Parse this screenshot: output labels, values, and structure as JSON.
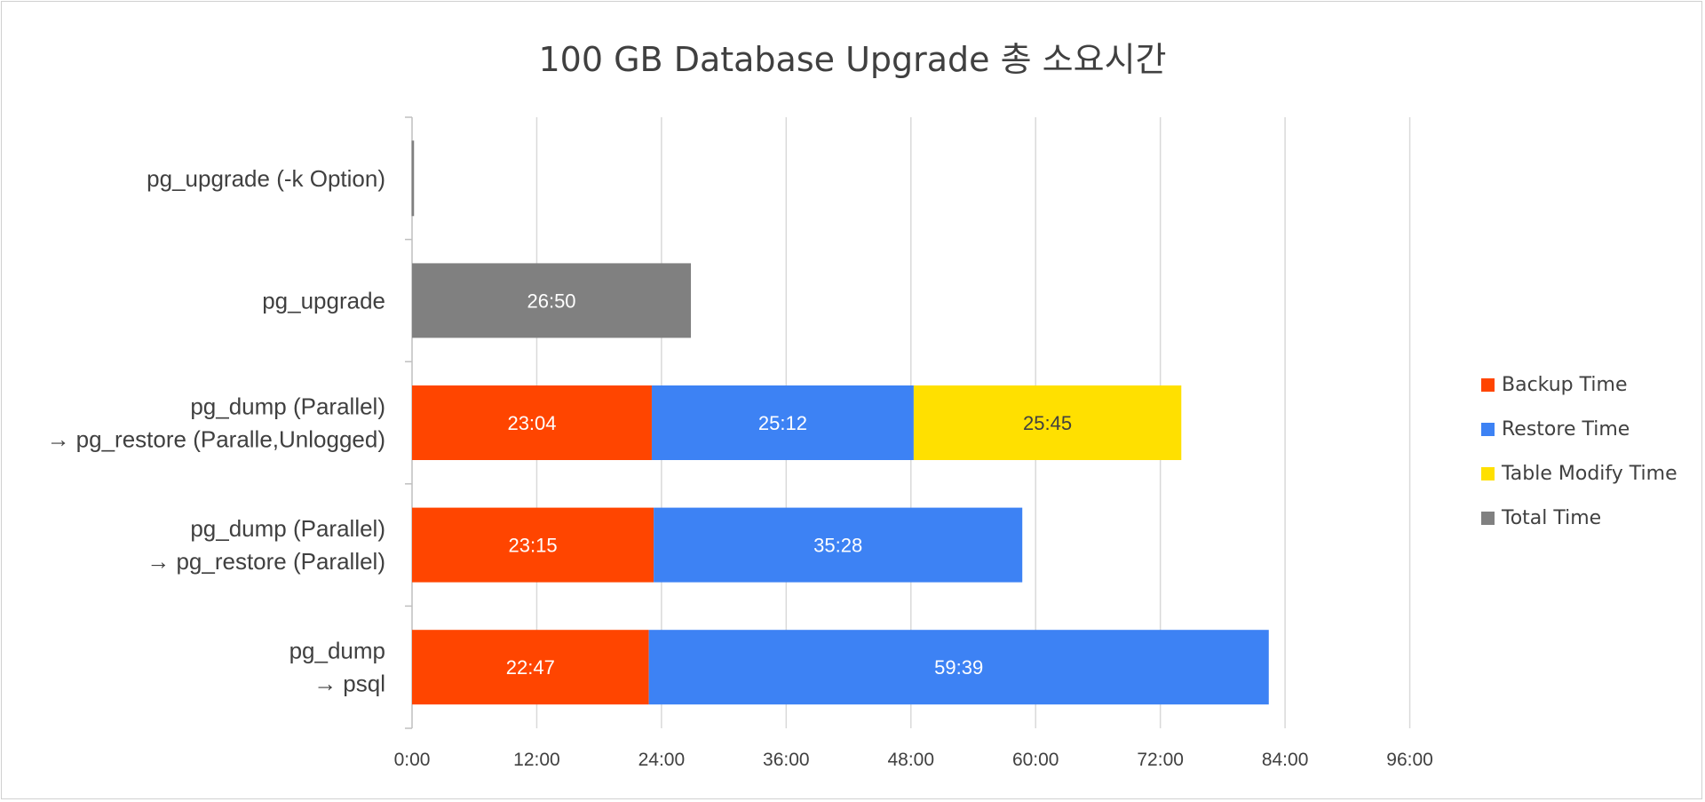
{
  "chart_data": {
    "type": "bar",
    "orientation": "horizontal",
    "stacked": true,
    "title": "100 GB Database Upgrade 총 소요시간",
    "categories": [
      [
        "pg_upgrade (-k Option)"
      ],
      [
        "pg_upgrade"
      ],
      [
        "pg_dump (Parallel)",
        "→ pg_restore (Paralle,Unlogged)"
      ],
      [
        "pg_dump (Parallel)",
        "→ pg_restore (Parallel)"
      ],
      [
        "pg_dump",
        "→ psql"
      ]
    ],
    "x_unit": "minutes",
    "xlim": [
      0,
      108
    ],
    "x_ticks": [
      0,
      12,
      24,
      36,
      48,
      60,
      72,
      84,
      96
    ],
    "x_tick_labels": [
      "0:00",
      "12:00",
      "24:00",
      "36:00",
      "48:00",
      "60:00",
      "72:00",
      "84:00",
      "96:00"
    ],
    "grid": true,
    "legend_position": "right",
    "series": [
      {
        "name": "Backup Time",
        "color": "#FF4500",
        "values": [
          0,
          0,
          23.067,
          23.25,
          22.783
        ],
        "labels": [
          "",
          "",
          "23:04",
          "23:15",
          "22:47"
        ]
      },
      {
        "name": "Restore Time",
        "color": "#3D82F4",
        "values": [
          0,
          0,
          25.2,
          35.467,
          59.65
        ],
        "labels": [
          "",
          "",
          "25:12",
          "35:28",
          "59:39"
        ]
      },
      {
        "name": "Table Modify Time",
        "color": "#FFE000",
        "values": [
          0,
          0,
          25.75,
          0,
          0
        ],
        "labels": [
          "",
          "",
          "25:45",
          "",
          ""
        ]
      },
      {
        "name": "Total Time",
        "color": "#808080",
        "values": [
          0.15,
          26.833,
          0,
          0,
          0
        ],
        "labels": [
          "",
          "26:50",
          "",
          "",
          ""
        ]
      }
    ]
  }
}
